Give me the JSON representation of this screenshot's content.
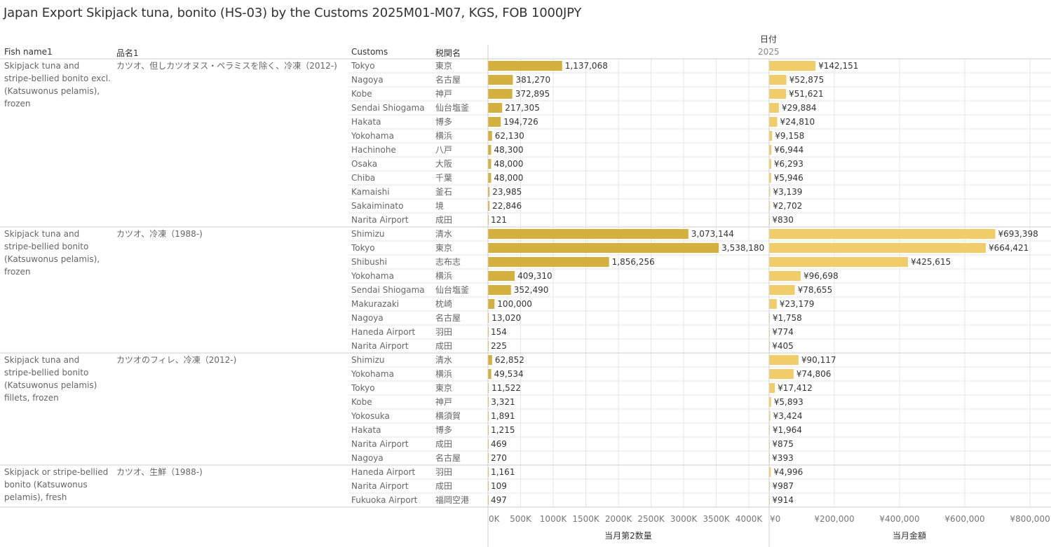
{
  "title": "Japan Export Skipjack tuna, bonito (HS-03) by the Customs 2025M01-M07, KGS, FOB 1000JPY",
  "headers": {
    "fish_name": "Fish name1",
    "hinmei": "品名1",
    "customs": "Customs",
    "zeikan": "税関名",
    "date_label": "日付",
    "year": "2025"
  },
  "colors": {
    "qty_bar": "#d4b03f",
    "value_bar": "#f0cd68",
    "grid": "#e6e6e6",
    "divider": "#cfcfcf"
  },
  "chart_data": {
    "type": "bar",
    "orientation": "horizontal",
    "measures": [
      {
        "name": "当月第2数量",
        "axis_ticks": [
          "0K",
          "500K",
          "1000K",
          "1500K",
          "2000K",
          "2500K",
          "3000K",
          "3500K",
          "4000K"
        ],
        "xlim": [
          0,
          4300000
        ]
      },
      {
        "name": "当月金額",
        "axis_ticks": [
          "¥0",
          "¥200,000",
          "¥400,000",
          "¥600,000",
          "¥800,000"
        ],
        "xlim": [
          0,
          860000
        ]
      }
    ],
    "groups": [
      {
        "fish_name": "Skipjack tuna and stripe-bellied bonito excl. (Katsuwonus pelamis), frozen",
        "fish_lines": [
          "Skipjack tuna and",
          "stripe-bellied bonito excl.",
          "(Katsuwonus pelamis),",
          "frozen"
        ],
        "hinmei": "カツオ、但しカツオヌス・ペラミスを除く、冷凍（2012-)",
        "rows": [
          {
            "customs": "Tokyo",
            "zeikan": "東京",
            "qty": 1137068,
            "qty_label": "1,137,068",
            "value": 142151,
            "value_label": "¥142,151"
          },
          {
            "customs": "Nagoya",
            "zeikan": "名古屋",
            "qty": 381270,
            "qty_label": "381,270",
            "value": 52875,
            "value_label": "¥52,875"
          },
          {
            "customs": "Kobe",
            "zeikan": "神戸",
            "qty": 372895,
            "qty_label": "372,895",
            "value": 51621,
            "value_label": "¥51,621"
          },
          {
            "customs": "Sendai Shiogama",
            "zeikan": "仙台塩釜",
            "qty": 217305,
            "qty_label": "217,305",
            "value": 29884,
            "value_label": "¥29,884"
          },
          {
            "customs": "Hakata",
            "zeikan": "博多",
            "qty": 194726,
            "qty_label": "194,726",
            "value": 24810,
            "value_label": "¥24,810"
          },
          {
            "customs": "Yokohama",
            "zeikan": "横浜",
            "qty": 62130,
            "qty_label": "62,130",
            "value": 9158,
            "value_label": "¥9,158"
          },
          {
            "customs": "Hachinohe",
            "zeikan": "八戸",
            "qty": 48300,
            "qty_label": "48,300",
            "value": 6944,
            "value_label": "¥6,944"
          },
          {
            "customs": "Osaka",
            "zeikan": "大阪",
            "qty": 48000,
            "qty_label": "48,000",
            "value": 6293,
            "value_label": "¥6,293"
          },
          {
            "customs": "Chiba",
            "zeikan": "千葉",
            "qty": 48000,
            "qty_label": "48,000",
            "value": 5946,
            "value_label": "¥5,946"
          },
          {
            "customs": "Kamaishi",
            "zeikan": "釜石",
            "qty": 23985,
            "qty_label": "23,985",
            "value": 3139,
            "value_label": "¥3,139"
          },
          {
            "customs": "Sakaiminato",
            "zeikan": "境",
            "qty": 22846,
            "qty_label": "22,846",
            "value": 2702,
            "value_label": "¥2,702"
          },
          {
            "customs": "Narita Airport",
            "zeikan": "成田",
            "qty": 121,
            "qty_label": "121",
            "value": 830,
            "value_label": "¥830"
          }
        ]
      },
      {
        "fish_name": "Skipjack tuna and stripe-bellied bonito (Katsuwonus pelamis), frozen",
        "fish_lines": [
          "Skipjack tuna and",
          "stripe-bellied bonito",
          "(Katsuwonus pelamis),",
          "frozen"
        ],
        "hinmei": "カツオ、冷凍（1988-)",
        "rows": [
          {
            "customs": "Shimizu",
            "zeikan": "清水",
            "qty": 3073144,
            "qty_label": "3,073,144",
            "value": 693398,
            "value_label": "¥693,398"
          },
          {
            "customs": "Tokyo",
            "zeikan": "東京",
            "qty": 3538180,
            "qty_label": "3,538,180",
            "value": 664421,
            "value_label": "¥664,421"
          },
          {
            "customs": "Shibushi",
            "zeikan": "志布志",
            "qty": 1856256,
            "qty_label": "1,856,256",
            "value": 425615,
            "value_label": "¥425,615"
          },
          {
            "customs": "Yokohama",
            "zeikan": "横浜",
            "qty": 409310,
            "qty_label": "409,310",
            "value": 96698,
            "value_label": "¥96,698"
          },
          {
            "customs": "Sendai Shiogama",
            "zeikan": "仙台塩釜",
            "qty": 352490,
            "qty_label": "352,490",
            "value": 78655,
            "value_label": "¥78,655"
          },
          {
            "customs": "Makurazaki",
            "zeikan": "枕崎",
            "qty": 100000,
            "qty_label": "100,000",
            "value": 23179,
            "value_label": "¥23,179"
          },
          {
            "customs": "Nagoya",
            "zeikan": "名古屋",
            "qty": 13020,
            "qty_label": "13,020",
            "value": 1758,
            "value_label": "¥1,758"
          },
          {
            "customs": "Haneda Airport",
            "zeikan": "羽田",
            "qty": 154,
            "qty_label": "154",
            "value": 774,
            "value_label": "¥774"
          },
          {
            "customs": "Narita Airport",
            "zeikan": "成田",
            "qty": 225,
            "qty_label": "225",
            "value": 405,
            "value_label": "¥405"
          }
        ]
      },
      {
        "fish_name": "Skipjack tuna and stripe-bellied bonito (Katsuwonus pelamis) fillets, frozen",
        "fish_lines": [
          "Skipjack tuna and",
          "stripe-bellied bonito",
          "(Katsuwonus pelamis)",
          "fillets, frozen"
        ],
        "hinmei": "カツオのフィレ、冷凍（2012-)",
        "rows": [
          {
            "customs": "Shimizu",
            "zeikan": "清水",
            "qty": 62852,
            "qty_label": "62,852",
            "value": 90117,
            "value_label": "¥90,117"
          },
          {
            "customs": "Yokohama",
            "zeikan": "横浜",
            "qty": 49534,
            "qty_label": "49,534",
            "value": 74806,
            "value_label": "¥74,806"
          },
          {
            "customs": "Tokyo",
            "zeikan": "東京",
            "qty": 11522,
            "qty_label": "11,522",
            "value": 17412,
            "value_label": "¥17,412"
          },
          {
            "customs": "Kobe",
            "zeikan": "神戸",
            "qty": 3321,
            "qty_label": "3,321",
            "value": 5893,
            "value_label": "¥5,893"
          },
          {
            "customs": "Yokosuka",
            "zeikan": "横須賀",
            "qty": 1891,
            "qty_label": "1,891",
            "value": 3424,
            "value_label": "¥3,424"
          },
          {
            "customs": "Hakata",
            "zeikan": "博多",
            "qty": 1215,
            "qty_label": "1,215",
            "value": 1964,
            "value_label": "¥1,964"
          },
          {
            "customs": "Narita Airport",
            "zeikan": "成田",
            "qty": 469,
            "qty_label": "469",
            "value": 875,
            "value_label": "¥875"
          },
          {
            "customs": "Nagoya",
            "zeikan": "名古屋",
            "qty": 270,
            "qty_label": "270",
            "value": 393,
            "value_label": "¥393"
          }
        ]
      },
      {
        "fish_name": "Skipjack or stripe-bellied bonito (Katsuwonus pelamis), fresh",
        "fish_lines": [
          "Skipjack or stripe-bellied",
          "bonito (Katsuwonus",
          "pelamis), fresh"
        ],
        "hinmei": "カツオ、生鮮（1988-)",
        "rows": [
          {
            "customs": "Haneda Airport",
            "zeikan": "羽田",
            "qty": 1161,
            "qty_label": "1,161",
            "value": 4996,
            "value_label": "¥4,996"
          },
          {
            "customs": "Narita Airport",
            "zeikan": "成田",
            "qty": 109,
            "qty_label": "109",
            "value": 987,
            "value_label": "¥987"
          },
          {
            "customs": "Fukuoka Airport",
            "zeikan": "福岡空港",
            "qty": 497,
            "qty_label": "497",
            "value": 914,
            "value_label": "¥914"
          }
        ]
      }
    ]
  }
}
